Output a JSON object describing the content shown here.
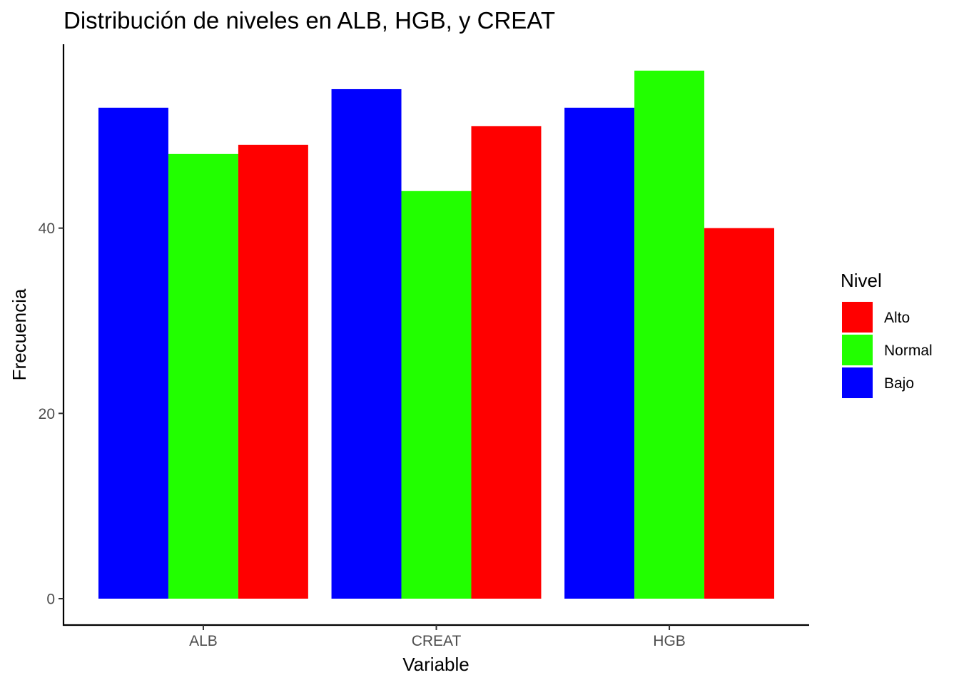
{
  "chart_data": {
    "type": "bar",
    "title": "Distribución de niveles en ALB, HGB, y CREAT",
    "xlabel": "Variable",
    "ylabel": "Frecuencia",
    "categories": [
      "ALB",
      "CREAT",
      "HGB"
    ],
    "series": [
      {
        "name": "Bajo",
        "color": "#0000FF",
        "values": [
          53,
          55,
          53
        ]
      },
      {
        "name": "Normal",
        "color": "#22FF00",
        "values": [
          48,
          44,
          57
        ]
      },
      {
        "name": "Alto",
        "color": "#FF0000",
        "values": [
          49,
          51,
          40
        ]
      }
    ],
    "y_ticks": [
      0,
      20,
      40
    ],
    "ylim": [
      -2.85,
      59.85
    ],
    "grid": false,
    "legend": {
      "title": "Nivel",
      "position": "right",
      "order": [
        "Alto",
        "Normal",
        "Bajo"
      ]
    }
  }
}
